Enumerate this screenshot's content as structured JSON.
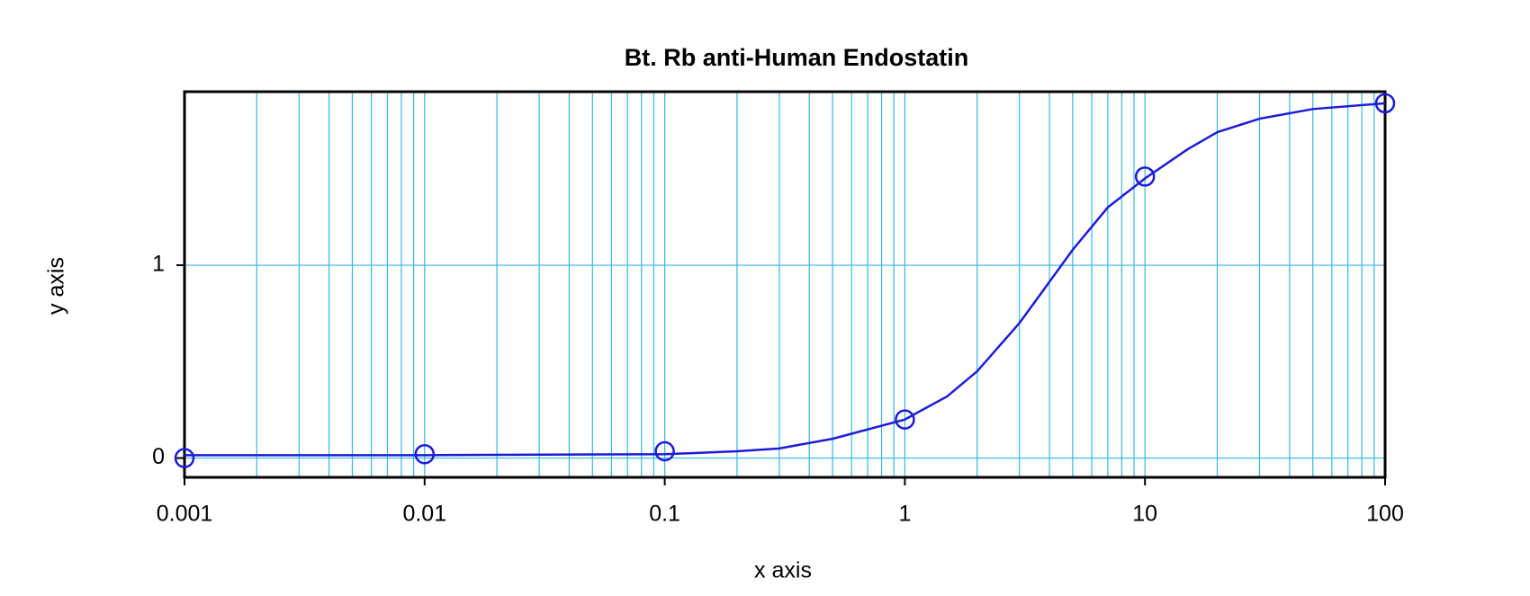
{
  "chart_data": {
    "type": "line",
    "title": "Bt. Rb anti-Human Endostatin",
    "x_label": "x axis",
    "y_label": "y axis",
    "x_scale": "log",
    "grid": true,
    "minor_grid": true,
    "grid_color": "#35b6e8",
    "xlim": [
      0.001,
      100
    ],
    "xticks": [
      0.001,
      0.01,
      0.1,
      1,
      10,
      100
    ],
    "ylim": [
      -0.1,
      1.9
    ],
    "yticks": [
      0,
      1
    ],
    "series": [
      {
        "style": "markers",
        "color": "#1c1cd6",
        "x": [
          0.001,
          0.01,
          0.1,
          1,
          10,
          100
        ],
        "values": [
          0,
          0.02,
          0.035,
          0.2,
          1.46,
          1.84
        ]
      },
      {
        "style": "line",
        "color": "#1c1cd6",
        "x": [
          0.001,
          0.01,
          0.1,
          0.2,
          0.3,
          0.5,
          1,
          1.5,
          2,
          3,
          5,
          7,
          10,
          15,
          20,
          30,
          50,
          100
        ],
        "values": [
          0.015,
          0.015,
          0.02,
          0.035,
          0.05,
          0.1,
          0.2,
          0.32,
          0.45,
          0.7,
          1.08,
          1.3,
          1.45,
          1.6,
          1.69,
          1.76,
          1.81,
          1.84
        ]
      }
    ]
  }
}
